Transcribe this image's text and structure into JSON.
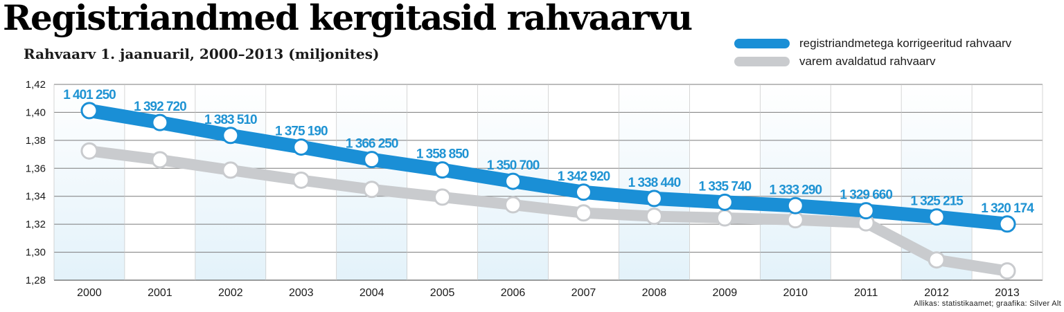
{
  "title": "Registriandmed kergitasid rahvaarvu",
  "subtitle": "Rahvaarv 1. jaanuaril, 2000–2013 (miljonites)",
  "source": "Allikas: statistikaamet; graafika: Silver Alt",
  "colors": {
    "corrected": "#1a8fd6",
    "previous": "#c9cbce",
    "band": "#e3f2fa",
    "label": "#1f93d3"
  },
  "legend": [
    {
      "label": "registriandmetega korrigeeritud rahvaarv",
      "color": "#1a8fd6"
    },
    {
      "label": "varem avaldatud rahvaarv",
      "color": "#c9cbce"
    }
  ],
  "chart_data": {
    "type": "line",
    "x": [
      "2000",
      "2001",
      "2002",
      "2003",
      "2004",
      "2005",
      "2006",
      "2007",
      "2008",
      "2009",
      "2010",
      "2011",
      "2012",
      "2013"
    ],
    "ylim": [
      1.28,
      1.42
    ],
    "yticks": [
      "1,28",
      "1,30",
      "1,32",
      "1,34",
      "1,36",
      "1,38",
      "1,40",
      "1,42"
    ],
    "grid": true,
    "legend_position": "top-right",
    "series": [
      {
        "name": "registriandmetega korrigeeritud rahvaarv",
        "values": [
          1.40125,
          1.39272,
          1.38351,
          1.37519,
          1.36625,
          1.35885,
          1.3507,
          1.34292,
          1.33844,
          1.33574,
          1.33329,
          1.32966,
          1.325215,
          1.320174
        ],
        "labels": [
          "1 401 250",
          "1 392 720",
          "1 383 510",
          "1 375 190",
          "1 366 250",
          "1 358 850",
          "1 350 700",
          "1 342 920",
          "1 338 440",
          "1 335 740",
          "1 333 290",
          "1 329 660",
          "1 325 215",
          "1 320 174"
        ]
      },
      {
        "name": "varem avaldatud rahvaarv",
        "values": [
          1.3724,
          1.3661,
          1.3587,
          1.3515,
          1.3449,
          1.3394,
          1.3339,
          1.3281,
          1.3257,
          1.3245,
          1.3232,
          1.321,
          1.2945,
          1.2866
        ]
      }
    ]
  }
}
